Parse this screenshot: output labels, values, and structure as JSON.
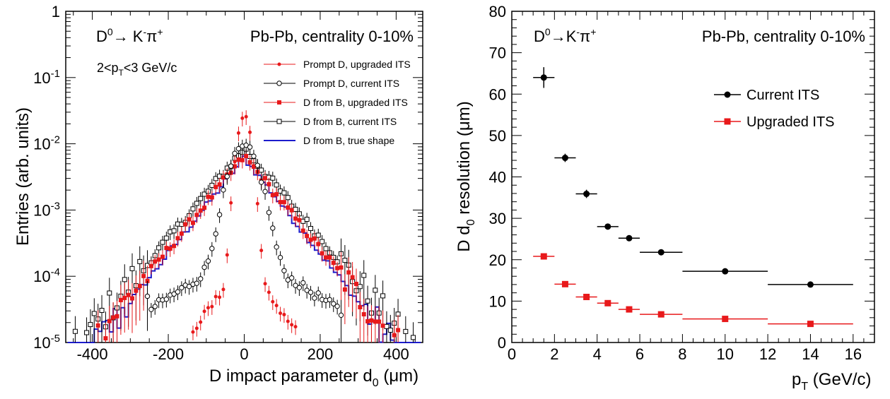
{
  "chart_data": [
    {
      "type": "scatter",
      "panel": "left",
      "yscale": "log",
      "xlim": [
        -470,
        470
      ],
      "ylim": [
        1e-05,
        1
      ],
      "x_ticks": [
        -400,
        -200,
        0,
        200,
        400
      ],
      "y_ticks": [
        {
          "value": 1e-05,
          "base": "10",
          "exp": "-5"
        },
        {
          "value": 0.0001,
          "base": "10",
          "exp": "-4"
        },
        {
          "value": 0.001,
          "base": "10",
          "exp": "-3"
        },
        {
          "value": 0.01,
          "base": "10",
          "exp": "-2"
        },
        {
          "value": 0.1,
          "base": "10",
          "exp": "-1"
        },
        {
          "value": 1,
          "base": "1",
          "exp": ""
        }
      ],
      "xlabel": {
        "main": "D impact parameter d",
        "sub": "0",
        "unit": " (μm)"
      },
      "ylabel": "Entries (arb. units)",
      "decay": {
        "d": "D",
        "sup0": "0",
        "arrow": "→ K",
        "supminus": "-",
        "pi": "π",
        "supplus": "+"
      },
      "system": "Pb-Pb, centrality 0-10%",
      "ptrange": {
        "pre": "2<p",
        "sub": "T",
        "post": "<3 GeV/c"
      },
      "legend_position": "top-right",
      "series": [
        {
          "name": "Prompt D, upgraded ITS",
          "color": "#e8191b",
          "marker": "dot",
          "sigma": 14,
          "peak": 0.026
        },
        {
          "name": "Prompt D, current ITS",
          "color": "#000000",
          "marker": "open-circle",
          "sigma": 30,
          "peak": 0.0085
        },
        {
          "name": "D from B, upgraded ITS",
          "color": "#e8191b",
          "marker": "square",
          "lambda": 62,
          "peak": 0.0065
        },
        {
          "name": "D from B, current ITS",
          "color": "#000000",
          "marker": "open-square",
          "lambda": 64,
          "peak": 0.0085
        },
        {
          "name": "D from B, true shape",
          "color": "#1c1ccc",
          "marker": "line",
          "lambda": 60,
          "peak": 0.0062
        }
      ]
    },
    {
      "type": "scatter",
      "panel": "right",
      "xlim": [
        0,
        17
      ],
      "ylim": [
        0,
        80
      ],
      "x_ticks": [
        0,
        2,
        4,
        6,
        8,
        10,
        12,
        14,
        16
      ],
      "y_ticks": [
        0,
        10,
        20,
        30,
        40,
        50,
        60,
        70,
        80
      ],
      "xlabel": {
        "main": "p",
        "sub": "T",
        "unit": " (GeV/c)"
      },
      "ylabel": {
        "main": "D d",
        "sub": "0",
        "unit": " resolution (μm)"
      },
      "decay": {
        "d": "D",
        "sup0": "0",
        "arrow": "→K",
        "supminus": "-",
        "pi": "π",
        "supplus": "+"
      },
      "system": "Pb-Pb, centrality 0-10%",
      "legend_position": "top-right",
      "series": [
        {
          "name": "Current ITS",
          "color": "#000000",
          "marker": "circle",
          "x": [
            1.5,
            2.5,
            3.5,
            4.5,
            5.5,
            7,
            10,
            14
          ],
          "xerr": [
            0.5,
            0.5,
            0.5,
            0.5,
            0.5,
            1,
            2,
            2
          ],
          "y": [
            64.0,
            44.6,
            35.9,
            28.0,
            25.2,
            21.8,
            17.2,
            14.0
          ],
          "yerr": [
            2.5,
            1.0,
            1.0,
            0.6,
            0.5,
            0.4,
            0.3,
            0.3
          ]
        },
        {
          "name": "Upgraded ITS",
          "color": "#e8191b",
          "marker": "square",
          "x": [
            1.5,
            2.5,
            3.5,
            4.5,
            5.5,
            7,
            10,
            14
          ],
          "xerr": [
            0.5,
            0.5,
            0.5,
            0.5,
            0.5,
            1,
            2,
            2
          ],
          "y": [
            20.8,
            14.1,
            11.0,
            9.5,
            8.0,
            6.8,
            5.7,
            4.5
          ],
          "yerr": [
            0.4,
            0.3,
            0.3,
            0.2,
            0.2,
            0.2,
            0.2,
            0.2
          ]
        }
      ]
    }
  ]
}
